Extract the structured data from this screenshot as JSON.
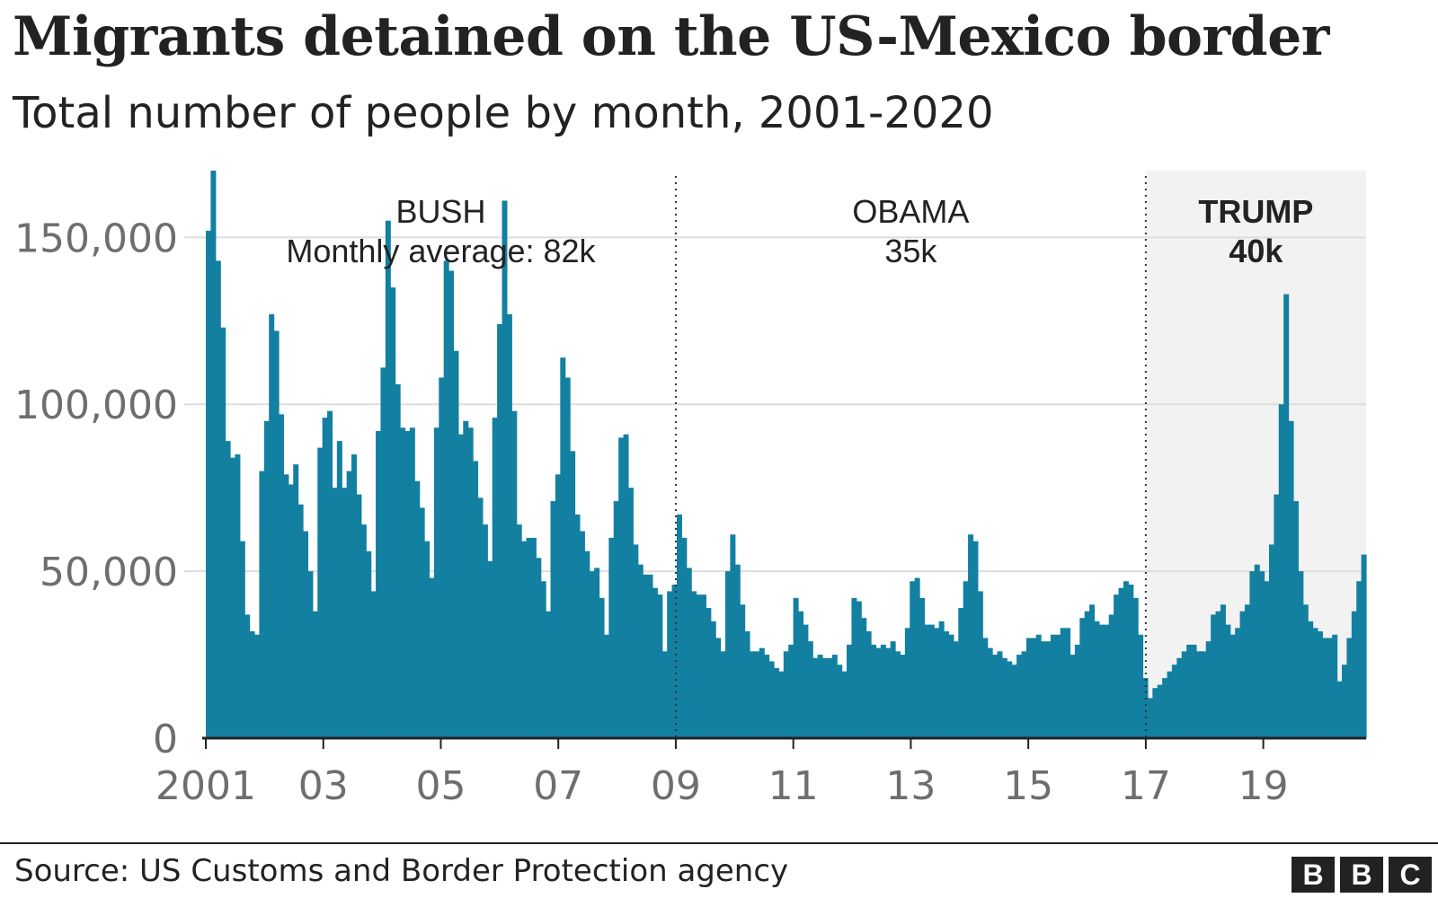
{
  "title": "Migrants detained on the US-Mexico border",
  "subtitle": "Total number of people by month, 2001-2020",
  "source": "Source: US Customs and Border Protection agency",
  "logo": [
    "B",
    "B",
    "C"
  ],
  "colors": {
    "bar": "#1380A1",
    "gridline": "#dddddd",
    "axis": "#222222",
    "tick_label": "#6e6e6e",
    "trump_shade": "#f2f2f2",
    "text": "#222222"
  },
  "chart_data": {
    "type": "bar",
    "title": "Migrants detained on the US-Mexico border",
    "subtitle": "Total number of people by month, 2001-2020",
    "xlabel": "",
    "ylabel": "",
    "ylim": [
      0,
      170000
    ],
    "yticks": [
      0,
      50000,
      100000,
      150000
    ],
    "ytick_labels": [
      "0",
      "50,000",
      "100,000",
      "150,000"
    ],
    "xticks": [
      2001,
      2003,
      2005,
      2007,
      2009,
      2011,
      2013,
      2015,
      2017,
      2019
    ],
    "xtick_labels": [
      "2001",
      "03",
      "05",
      "07",
      "09",
      "11",
      "13",
      "15",
      "17",
      "19"
    ],
    "x_start": 2001.0,
    "x_end": 2020.75,
    "grid": true,
    "legend": "none",
    "periods": [
      {
        "name": "BUSH",
        "label": "Monthly average: 82k",
        "start": 2001.0,
        "end": 2009.0,
        "highlight": false
      },
      {
        "name": "OBAMA",
        "label": "35k",
        "start": 2009.0,
        "end": 2017.0,
        "highlight": false
      },
      {
        "name": "TRUMP",
        "label": "40k",
        "start": 2017.0,
        "end": 2020.75,
        "highlight": true
      }
    ],
    "series": [
      {
        "name": "Migrants detained",
        "values": [
          152000,
          170000,
          143000,
          123000,
          89000,
          84000,
          85000,
          59000,
          37000,
          32000,
          31000,
          80000,
          95000,
          127000,
          122000,
          97000,
          79000,
          76000,
          82000,
          70000,
          62000,
          50000,
          38000,
          87000,
          96000,
          98000,
          75000,
          89000,
          75000,
          80000,
          85000,
          73000,
          64000,
          56000,
          44000,
          92000,
          111000,
          155000,
          135000,
          106000,
          93000,
          92000,
          93000,
          77000,
          69000,
          59000,
          48000,
          93000,
          108000,
          143000,
          140000,
          116000,
          91000,
          95000,
          93000,
          83000,
          72000,
          64000,
          53000,
          96000,
          124000,
          161000,
          127000,
          98000,
          64000,
          59000,
          60000,
          60000,
          54000,
          47000,
          38000,
          71000,
          79000,
          114000,
          108000,
          86000,
          67000,
          62000,
          56000,
          50000,
          51000,
          42000,
          31000,
          60000,
          71000,
          90000,
          91000,
          75000,
          58000,
          52000,
          49000,
          49000,
          45000,
          43000,
          26000,
          44000,
          46000,
          67000,
          60000,
          51000,
          44000,
          43000,
          43000,
          39000,
          35000,
          30000,
          26000,
          50000,
          61000,
          52000,
          40000,
          32000,
          26000,
          26000,
          27000,
          25000,
          23000,
          21000,
          20000,
          26000,
          28000,
          42000,
          38000,
          34000,
          29000,
          24000,
          25000,
          24000,
          24000,
          25000,
          22000,
          20000,
          28000,
          42000,
          41000,
          36000,
          32000,
          28000,
          27000,
          28000,
          27000,
          29000,
          26000,
          25000,
          33000,
          47000,
          48000,
          42000,
          34000,
          34000,
          33000,
          35000,
          32000,
          31000,
          29000,
          39000,
          47000,
          61000,
          59000,
          44000,
          30000,
          27000,
          25000,
          26000,
          24000,
          23000,
          22000,
          25000,
          26000,
          30000,
          30000,
          31000,
          29000,
          29000,
          31000,
          31000,
          33000,
          33000,
          25000,
          28000,
          36000,
          38000,
          40000,
          35000,
          34000,
          34000,
          37000,
          43000,
          45000,
          47000,
          46000,
          42000,
          31000,
          18000,
          12000,
          15000,
          16000,
          18000,
          20000,
          22000,
          24000,
          26000,
          28000,
          28000,
          26000,
          26000,
          29000,
          37000,
          38000,
          40000,
          34000,
          31000,
          33000,
          38000,
          40000,
          50000,
          52000,
          50000,
          47000,
          58000,
          73000,
          100000,
          133000,
          95000,
          71000,
          50000,
          40000,
          35000,
          33000,
          32000,
          30000,
          30000,
          31000,
          17000,
          22000,
          30000,
          38000,
          47000,
          55000
        ]
      }
    ]
  }
}
